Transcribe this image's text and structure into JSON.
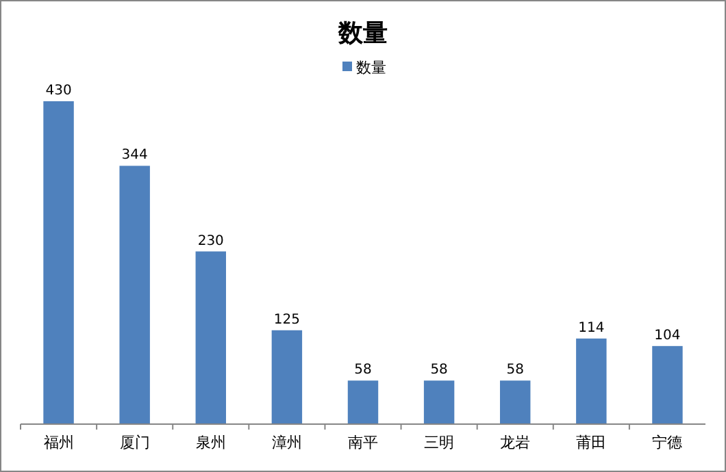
{
  "chart_data": {
    "type": "bar",
    "title": "数量",
    "categories": [
      "福州",
      "厦门",
      "泉州",
      "漳州",
      "南平",
      "三明",
      "龙岩",
      "莆田",
      "宁德"
    ],
    "series": [
      {
        "name": "数量",
        "color": "#4f81bd",
        "values": [
          430,
          344,
          230,
          125,
          58,
          58,
          58,
          114,
          104
        ]
      }
    ],
    "data_labels": true,
    "legend": "top",
    "grid": false,
    "tick_labels": "x"
  }
}
